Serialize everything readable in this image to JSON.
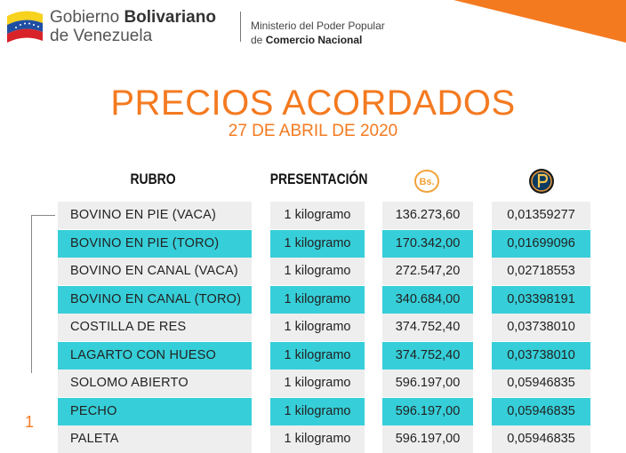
{
  "header": {
    "gov_line1_prefix": "Gobierno ",
    "gov_line1_bold": "Bolivariano",
    "gov_line2": "de Venezuela",
    "ministry_line1": "Ministerio del Poder Popular",
    "ministry_line2_prefix": "de ",
    "ministry_line2_bold": "Comercio Nacional"
  },
  "title": "PRECIOS ACORDADOS",
  "date": "27 DE ABRIL DE 2020",
  "table": {
    "col_rubro": "RUBRO",
    "col_presentacion": "PRESENTACIÓN",
    "col_bs": "Bs.",
    "rows": [
      {
        "rubro": "BOVINO EN PIE (VACA)",
        "presentacion": "1 kilogramo",
        "bs": "136.273,60",
        "petro": "0,01359277",
        "style": "grey"
      },
      {
        "rubro": "BOVINO EN PIE (TORO)",
        "presentacion": "1 kilogramo",
        "bs": "170.342,00",
        "petro": "0,01699096",
        "style": "cyan"
      },
      {
        "rubro": "BOVINO EN CANAL (VACA)",
        "presentacion": "1 kilogramo",
        "bs": "272.547,20",
        "petro": "0,02718553",
        "style": "grey"
      },
      {
        "rubro": "BOVINO EN CANAL (TORO)",
        "presentacion": "1 kilogramo",
        "bs": "340.684,00",
        "petro": "0,03398191",
        "style": "cyan"
      },
      {
        "rubro": "COSTILLA DE RES",
        "presentacion": "1 kilogramo",
        "bs": "374.752,40",
        "petro": "0,03738010",
        "style": "grey"
      },
      {
        "rubro": "LAGARTO CON HUESO",
        "presentacion": "1 kilogramo",
        "bs": "374.752,40",
        "petro": "0,03738010",
        "style": "cyan"
      },
      {
        "rubro": "SOLOMO ABIERTO",
        "presentacion": "1 kilogramo",
        "bs": "596.197,00",
        "petro": "0,05946835",
        "style": "grey"
      },
      {
        "rubro": "PECHO",
        "presentacion": "1 kilogramo",
        "bs": "596.197,00",
        "petro": "0,05946835",
        "style": "cyan"
      },
      {
        "rubro": "PALETA",
        "presentacion": "1 kilogramo",
        "bs": "596.197,00",
        "petro": "0,05946835",
        "style": "grey"
      }
    ]
  },
  "page_number": "1",
  "colors": {
    "accent": "#f47a20",
    "cyan": "#36cfd9",
    "grey": "#eeeeee"
  }
}
